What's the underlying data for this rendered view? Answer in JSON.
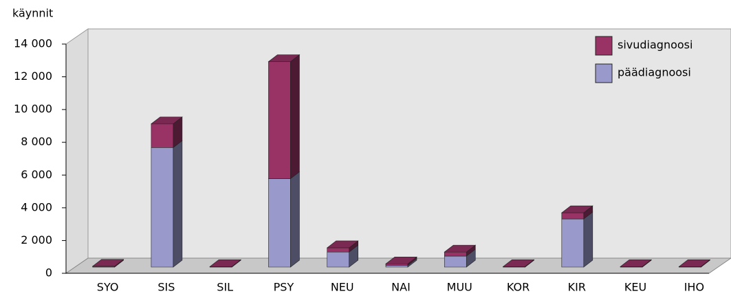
{
  "chart_data": {
    "type": "bar3d_stacked",
    "y_axis_label": "käynnit",
    "categories": [
      "SYO",
      "SIS",
      "SIL",
      "PSY",
      "NEU",
      "NAI",
      "MUU",
      "KOR",
      "KIR",
      "KEU",
      "IHO"
    ],
    "series": [
      {
        "name": "päädiagnoosi",
        "color": "#9999cc",
        "values": [
          0,
          7300,
          0,
          5400,
          920,
          100,
          670,
          0,
          2940,
          0,
          0
        ]
      },
      {
        "name": "sivudiagnoosi",
        "color": "#993366",
        "values": [
          50,
          1450,
          30,
          7150,
          260,
          100,
          250,
          30,
          380,
          30,
          30
        ]
      }
    ],
    "ylim": [
      0,
      14000
    ],
    "yticks": [
      0,
      {
        "value": 2000,
        "label": "2 000"
      },
      {
        "value": 4000,
        "label": "4 000"
      },
      {
        "value": 6000,
        "label": "6 000"
      },
      {
        "value": 8000,
        "label": "8 000"
      },
      {
        "value": 10000,
        "label": "10 000"
      },
      {
        "value": 12000,
        "label": "12 000"
      },
      {
        "value": 14000,
        "label": "14 000"
      }
    ],
    "legend": "top-right",
    "grid": false
  }
}
